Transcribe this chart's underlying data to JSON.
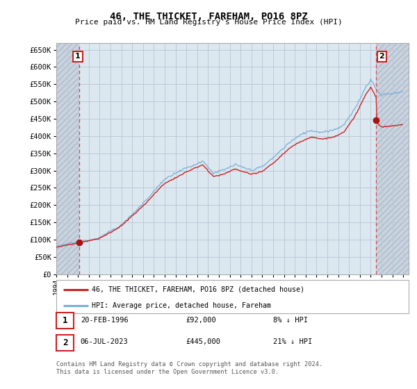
{
  "title": "46, THE THICKET, FAREHAM, PO16 8PZ",
  "subtitle": "Price paid vs. HM Land Registry's House Price Index (HPI)",
  "ylim": [
    0,
    670000
  ],
  "yticks": [
    0,
    50000,
    100000,
    150000,
    200000,
    250000,
    300000,
    350000,
    400000,
    450000,
    500000,
    550000,
    600000,
    650000
  ],
  "ytick_labels": [
    "£0",
    "£50K",
    "£100K",
    "£150K",
    "£200K",
    "£250K",
    "£300K",
    "£350K",
    "£400K",
    "£450K",
    "£500K",
    "£550K",
    "£600K",
    "£650K"
  ],
  "hpi_color": "#7ab0d4",
  "price_color": "#cc2222",
  "dot_color": "#aa1111",
  "annotation_box_color": "#cc2222",
  "grid_color": "#c0c8d8",
  "background_color": "#dce8f0",
  "plot_bg_color": "#dce8f0",
  "sale1_year": 1996.13,
  "sale1_price": 92000,
  "sale1_label": "1",
  "sale2_year": 2023.51,
  "sale2_price": 445000,
  "sale2_label": "2",
  "legend_line1": "46, THE THICKET, FAREHAM, PO16 8PZ (detached house)",
  "legend_line2": "HPI: Average price, detached house, Fareham",
  "footer_line1": "Contains HM Land Registry data © Crown copyright and database right 2024.",
  "footer_line2": "This data is licensed under the Open Government Licence v3.0.",
  "table_row1": [
    "1",
    "20-FEB-1996",
    "£92,000",
    "8% ↓ HPI"
  ],
  "table_row2": [
    "2",
    "06-JUL-2023",
    "£445,000",
    "21% ↓ HPI"
  ],
  "xstart": 1994.0,
  "xend": 2026.5,
  "xtick_years": [
    1994,
    1995,
    1996,
    1997,
    1998,
    1999,
    2000,
    2001,
    2002,
    2003,
    2004,
    2005,
    2006,
    2007,
    2008,
    2009,
    2010,
    2011,
    2012,
    2013,
    2014,
    2015,
    2016,
    2017,
    2018,
    2019,
    2020,
    2021,
    2022,
    2023,
    2024,
    2025,
    2026
  ]
}
